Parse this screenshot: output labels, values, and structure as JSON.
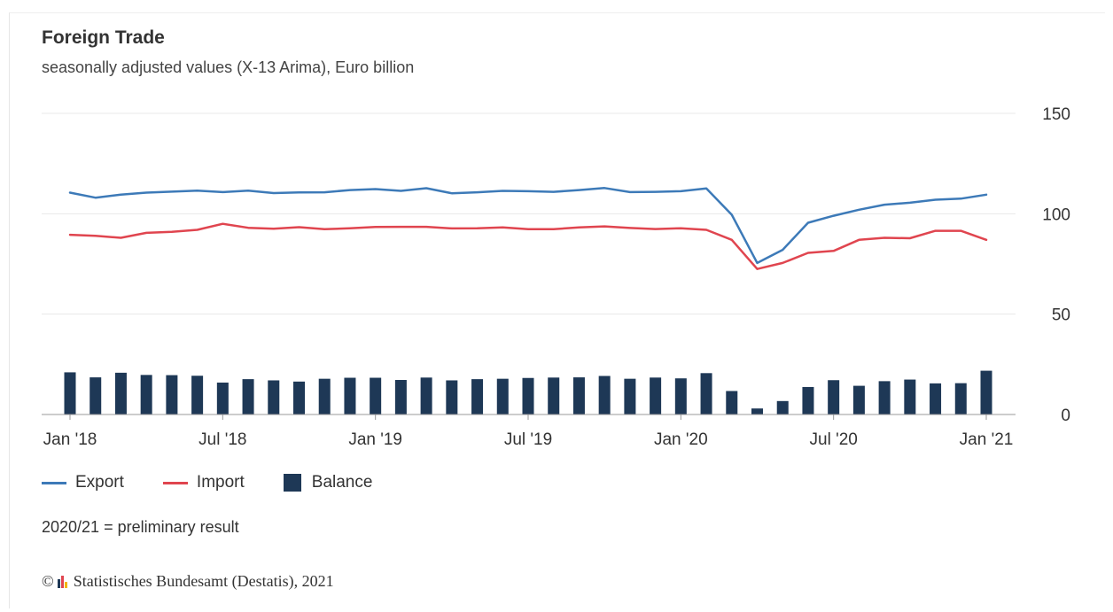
{
  "header": {
    "title": "Foreign Trade",
    "subtitle": "seasonally adjusted values (X-13 Arima), Euro billion"
  },
  "legend": {
    "export_label": "Export",
    "import_label": "Import",
    "balance_label": "Balance"
  },
  "note": "2020/21 = preliminary result",
  "footer": {
    "copyright_symbol": "©",
    "source": "Statistisches Bundesamt (Destatis), 2021"
  },
  "colors": {
    "export": "#3d7ab8",
    "import": "#e0454f",
    "balance": "#1e3856",
    "grid": "#e8e8e8",
    "axis": "#999999"
  },
  "chart_data": {
    "type": "line",
    "x": [
      "Jan 2018",
      "Feb 2018",
      "Mar 2018",
      "Apr 2018",
      "May 2018",
      "Jun 2018",
      "Jul 2018",
      "Aug 2018",
      "Sep 2018",
      "Oct 2018",
      "Nov 2018",
      "Dec 2018",
      "Jan 2019",
      "Feb 2019",
      "Mar 2019",
      "Apr 2019",
      "May 2019",
      "Jun 2019",
      "Jul 2019",
      "Aug 2019",
      "Sep 2019",
      "Oct 2019",
      "Nov 2019",
      "Dec 2019",
      "Jan 2020",
      "Feb 2020",
      "Mar 2020",
      "Apr 2020",
      "May 2020",
      "Jun 2020",
      "Jul 2020",
      "Aug 2020",
      "Sep 2020",
      "Oct 2020",
      "Nov 2020",
      "Dec 2020",
      "Jan 2021"
    ],
    "tick_labels": [
      "Jan '18",
      "Jul '18",
      "Jan '19",
      "Jul '19",
      "Jan '20",
      "Jul '20",
      "Jan '21"
    ],
    "tick_months": [
      "Jan 2018",
      "Jul 2018",
      "Jan 2019",
      "Jul 2019",
      "Jan 2020",
      "Jul 2020",
      "Jan 2021"
    ],
    "ylim": [
      0,
      150
    ],
    "yticks": [
      0,
      50,
      100,
      150
    ],
    "y_axis_position": "right",
    "grid": true,
    "legend_position": "bottom-left",
    "series": [
      {
        "name": "Export",
        "type": "line",
        "values": [
          110.5,
          108,
          109.5,
          110.5,
          111,
          111.5,
          110.8,
          111.5,
          110.3,
          110.6,
          110.7,
          111.8,
          112.3,
          111.4,
          112.7,
          110.2,
          110.7,
          111.4,
          111.2,
          110.9,
          111.8,
          112.8,
          110.8,
          110.9,
          111.2,
          112.6,
          99.5,
          75.5,
          82,
          95.5,
          99,
          102,
          104.5,
          105.5,
          107,
          107.5,
          109.5
        ]
      },
      {
        "name": "Import",
        "type": "line",
        "values": [
          89.5,
          89,
          88,
          90.5,
          91,
          92,
          95,
          93,
          92.5,
          93.3,
          92.3,
          92.8,
          93.4,
          93.5,
          93.5,
          92.7,
          92.8,
          93.2,
          92.3,
          92.3,
          93.2,
          93.7,
          92.9,
          92.4,
          92.8,
          92,
          87,
          72.5,
          75.5,
          80.5,
          81.5,
          87,
          88,
          87.8,
          91.5,
          91.5,
          87
        ]
      },
      {
        "name": "Balance",
        "type": "bar",
        "values": [
          21,
          18.5,
          20.8,
          19.7,
          19.6,
          19.3,
          15.9,
          17.6,
          17,
          16.4,
          17.8,
          18.3,
          18.3,
          17.2,
          18.4,
          17,
          17.6,
          17.8,
          18.2,
          18.4,
          18.5,
          19.2,
          17.8,
          18.4,
          18,
          20.6,
          11.7,
          3,
          6.7,
          13.7,
          17.1,
          14.3,
          16.6,
          17.4,
          15.5,
          15.6,
          21.8
        ]
      }
    ]
  }
}
